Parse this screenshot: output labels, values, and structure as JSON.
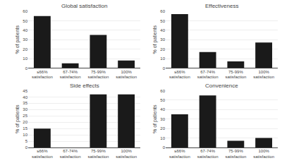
{
  "chart_data": [
    {
      "type": "bar",
      "title": "Global satisfaction",
      "categories": [
        "≤66%\nsatisfaction",
        "67-74%\nsatisfaction",
        "75-99%\nsatisfaction",
        "100%\nsatisfaction"
      ],
      "values": [
        55,
        5,
        35,
        8
      ],
      "color": "#1a1a1a",
      "ylabel": "% of patients",
      "ylim": [
        0,
        60
      ],
      "yticks": [
        0,
        10,
        20,
        30,
        40,
        50,
        60
      ],
      "grid": true
    },
    {
      "type": "bar",
      "title": "Effectiveness",
      "categories": [
        "≤66%\nsatisfaction",
        "67-74%\nsatisfaction",
        "75-99%\nsatisfaction",
        "100%\nsatisfaction"
      ],
      "values": [
        57,
        17,
        7,
        27
      ],
      "color": "#1a1a1a",
      "ylabel": "% of patients",
      "ylim": [
        0,
        60
      ],
      "yticks": [
        0,
        10,
        20,
        30,
        40,
        50,
        60
      ],
      "grid": true
    },
    {
      "type": "bar",
      "title": "Side effects",
      "categories": [
        "≤66%\nsatisfaction",
        "67-74%\nsatisfaction",
        "75-99%\nsatisfaction",
        "100%\nsatisfaction"
      ],
      "values": [
        15,
        0,
        42,
        42
      ],
      "color": "#1a1a1a",
      "ylabel": "% of patients",
      "ylim": [
        0,
        45
      ],
      "yticks": [
        0,
        5,
        10,
        15,
        20,
        25,
        30,
        35,
        40,
        45
      ],
      "grid": true
    },
    {
      "type": "bar",
      "title": "Convenience",
      "categories": [
        "≤66%\nsatisfaction",
        "67-74%\nsatisfaction",
        "75-99%\nsatisfaction",
        "100%\nsatisfaction"
      ],
      "values": [
        35,
        55,
        7,
        10
      ],
      "color": "#1a1a1a",
      "ylabel": "% of patients",
      "ylim": [
        0,
        60
      ],
      "yticks": [
        0,
        10,
        20,
        30,
        40,
        50,
        60
      ],
      "grid": true
    }
  ]
}
